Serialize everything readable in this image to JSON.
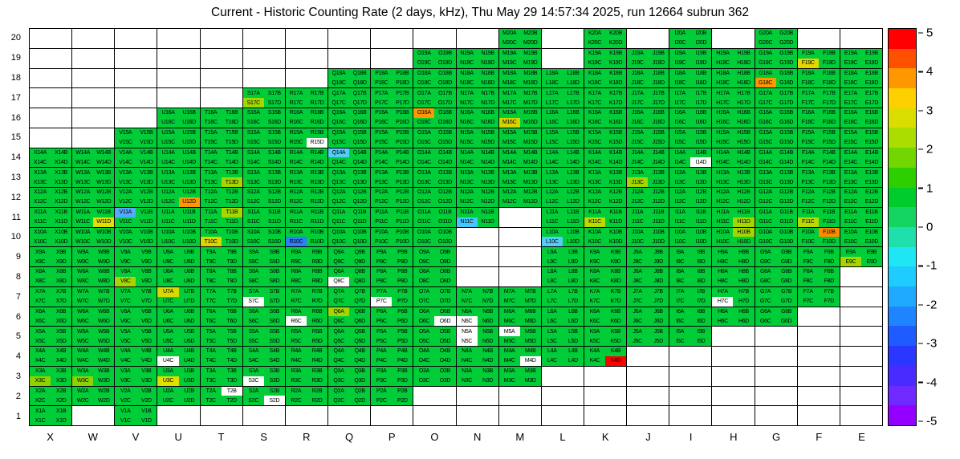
{
  "title": "Current - Historic Counting Rate (2 days, kHz), Thu May 29 14:57:34 2025, run 12664 subrun 362",
  "chart_data": {
    "type": "heatmap",
    "title": "Current - Historic Counting Rate (2 days, kHz), Thu May 29 14:57:34 2025, run 12664 subrun 362",
    "value_range": [
      -5,
      5
    ],
    "grid": true,
    "x_axis_labels": [
      "X",
      "W",
      "V",
      "U",
      "T",
      "S",
      "R",
      "Q",
      "P",
      "O",
      "N",
      "M",
      "L",
      "K",
      "J",
      "I",
      "H",
      "G",
      "F",
      "E"
    ],
    "y_axis_labels": [
      "20",
      "19",
      "18",
      "17",
      "16",
      "15",
      "14",
      "13",
      "12",
      "11",
      "10",
      "9",
      "8",
      "7",
      "6",
      "5",
      "4",
      "3",
      "2",
      "1"
    ],
    "quadrant_suffixes": [
      "A",
      "B",
      "C",
      "D"
    ],
    "default_color": "#00cd38",
    "empty_color": "#ffffff",
    "row_occupancy": {
      "20": [
        "M",
        "K",
        "I",
        "G"
      ],
      "19": [
        "O",
        "N",
        "M",
        "K",
        "J",
        "I",
        "H",
        "G",
        "F",
        "E"
      ],
      "18": [
        "Q",
        "P",
        "O",
        "N",
        "M",
        "L",
        "K",
        "J",
        "I",
        "H",
        "G",
        "F",
        "E"
      ],
      "17": [
        "S",
        "R",
        "Q",
        "P",
        "O",
        "N",
        "M",
        "L",
        "K",
        "J",
        "I",
        "H",
        "G",
        "F",
        "E"
      ],
      "16": [
        "U",
        "T",
        "S",
        "R",
        "Q",
        "P",
        "O",
        "N",
        "M",
        "L",
        "K",
        "J",
        "I",
        "H",
        "G",
        "F",
        "E"
      ],
      "15": [
        "V",
        "U",
        "T",
        "S",
        "R",
        "Q",
        "P",
        "O",
        "N",
        "M",
        "L",
        "K",
        "J",
        "I",
        "H",
        "G",
        "F",
        "E"
      ],
      "14": [
        "X",
        "W",
        "V",
        "U",
        "T",
        "S",
        "R",
        "Q",
        "P",
        "O",
        "N",
        "M",
        "L",
        "K",
        "J",
        "I",
        "H",
        "G",
        "F",
        "E"
      ],
      "13": [
        "X",
        "W",
        "V",
        "U",
        "T",
        "S",
        "R",
        "Q",
        "P",
        "O",
        "N",
        "M",
        "L",
        "K",
        "J",
        "I",
        "H",
        "G",
        "F",
        "E"
      ],
      "12": [
        "X",
        "W",
        "V",
        "U",
        "T",
        "S",
        "R",
        "Q",
        "P",
        "O",
        "N",
        "M",
        "L",
        "K",
        "J",
        "I",
        "H",
        "G",
        "F",
        "E"
      ],
      "11": [
        "X",
        "W",
        "V",
        "U",
        "T",
        "S",
        "R",
        "Q",
        "P",
        "O",
        "N",
        "L",
        "K",
        "J",
        "I",
        "H",
        "G",
        "F",
        "E"
      ],
      "10": [
        "X",
        "W",
        "V",
        "U",
        "T",
        "S",
        "R",
        "Q",
        "P",
        "O",
        "L",
        "K",
        "J",
        "I",
        "H",
        "G",
        "F",
        "E"
      ],
      "9": [
        "X",
        "W",
        "V",
        "U",
        "T",
        "S",
        "R",
        "Q",
        "P",
        "O",
        "L",
        "K",
        "J",
        "I",
        "H",
        "G",
        "F",
        "E"
      ],
      "8": [
        "X",
        "W",
        "V",
        "U",
        "T",
        "S",
        "R",
        "Q",
        "P",
        "O",
        "L",
        "K",
        "J",
        "I",
        "H",
        "G",
        "F"
      ],
      "7": [
        "X",
        "W",
        "V",
        "U",
        "T",
        "S",
        "R",
        "Q",
        "P",
        "O",
        "N",
        "M",
        "L",
        "K",
        "J",
        "I",
        "H",
        "G",
        "F"
      ],
      "6": [
        "X",
        "W",
        "V",
        "U",
        "T",
        "S",
        "R",
        "Q",
        "P",
        "O",
        "N",
        "M",
        "L",
        "K",
        "J",
        "I",
        "H",
        "G"
      ],
      "5": [
        "X",
        "W",
        "V",
        "U",
        "T",
        "S",
        "R",
        "Q",
        "P",
        "O",
        "N",
        "M",
        "L",
        "K",
        "J",
        "I"
      ],
      "4": [
        "X",
        "W",
        "V",
        "U",
        "T",
        "S",
        "R",
        "Q",
        "P",
        "O",
        "N",
        "M",
        "L",
        "K"
      ],
      "3": [
        "X",
        "W",
        "V",
        "U",
        "T",
        "S",
        "R",
        "Q",
        "P",
        "O",
        "N",
        "M"
      ],
      "2": [
        "X",
        "W",
        "V",
        "U",
        "T",
        "S",
        "R",
        "Q",
        "P"
      ],
      "1": [
        "X",
        "V"
      ]
    },
    "anomalies": [
      {
        "cell": "F19",
        "quad": "C",
        "color": "#e4d700"
      },
      {
        "cell": "G18",
        "quad": "C",
        "color": "#ff9800"
      },
      {
        "cell": "S17",
        "quad": "C",
        "color": "#a4d700"
      },
      {
        "cell": "O16",
        "quad": "A",
        "color": "#ff9800"
      },
      {
        "cell": "M16",
        "quad": "C",
        "color": "#d6d400"
      },
      {
        "cell": "R15",
        "quad": "D",
        "color": "#ffffff"
      },
      {
        "cell": "Q14",
        "quad": "A",
        "color": "#54ccf8"
      },
      {
        "cell": "I14",
        "quad": "D",
        "color": "#ffffff"
      },
      {
        "cell": "T13",
        "quad": "D",
        "color": "#a4d700"
      },
      {
        "cell": "J13",
        "quad": "C",
        "color": "#a4d700"
      },
      {
        "cell": "U12",
        "quad": "D",
        "color": "#ff9800"
      },
      {
        "cell": "W11",
        "quad": "D",
        "color": "#e0df00"
      },
      {
        "cell": "V11",
        "quad": "A",
        "color": "#55aaff"
      },
      {
        "cell": "T11",
        "quad": "B",
        "color": "#a4d700"
      },
      {
        "cell": "N11",
        "quad": "C",
        "color": "#44c8ff"
      },
      {
        "cell": "K11",
        "quad": "C",
        "color": "#bada00"
      },
      {
        "cell": "H11",
        "quad": "D",
        "color": "#a4d700"
      },
      {
        "cell": "F11",
        "quad": "C",
        "color": "#bada00"
      },
      {
        "cell": "T10",
        "quad": "C",
        "color": "#ddd500"
      },
      {
        "cell": "R10",
        "quad": "C",
        "color": "#2d7dff"
      },
      {
        "cell": "L10",
        "quad": "C",
        "color": "#54ccf8"
      },
      {
        "cell": "H10",
        "quad": "B",
        "color": "#a4d700"
      },
      {
        "cell": "F10",
        "quad": "B",
        "color": "#ff8c00"
      },
      {
        "cell": "E9",
        "quad": "C",
        "color": "#a4d700"
      },
      {
        "cell": "V8",
        "quad": "C",
        "color": "#a4d700"
      },
      {
        "cell": "Q8",
        "quad": "C",
        "color": "#ffffff"
      },
      {
        "cell": "U7",
        "quad": "A",
        "color": "#d6da00"
      },
      {
        "cell": "S7",
        "quad": "C",
        "color": "#ffffff"
      },
      {
        "cell": "P7",
        "quad": "C",
        "color": "#ffffff"
      },
      {
        "cell": "H7",
        "quad": "C",
        "color": "#ffffff"
      },
      {
        "cell": "Q6",
        "quad": "A",
        "color": "#a4d700"
      },
      {
        "cell": "R6",
        "quad": "C",
        "color": "#ffffff"
      },
      {
        "cell": "O6",
        "quad": "D",
        "color": "#ffffff"
      },
      {
        "cell": "N6",
        "quad": "C",
        "color": "#ffffff"
      },
      {
        "cell": "N5",
        "quad": "A",
        "color": "#ffffff"
      },
      {
        "cell": "N5",
        "quad": "C",
        "color": "#ffffff"
      },
      {
        "cell": "M5",
        "quad": "A",
        "color": "#ffffff"
      },
      {
        "cell": "U4",
        "quad": "C",
        "color": "#ffffff"
      },
      {
        "cell": "M4",
        "quad": "D",
        "color": "#ffffff"
      },
      {
        "cell": "K4",
        "quad": "D",
        "color": "#ff0000"
      },
      {
        "cell": "X3",
        "quad": "C",
        "color": "#8fd200"
      },
      {
        "cell": "W3",
        "quad": "C",
        "color": "#8fd200"
      },
      {
        "cell": "U3",
        "quad": "C",
        "color": "#e0df00"
      },
      {
        "cell": "S3",
        "quad": "C",
        "color": "#ffffff"
      },
      {
        "cell": "T2",
        "quad": "B",
        "color": "#ffffff"
      },
      {
        "cell": "S2",
        "quad": "D",
        "color": "#ffffff"
      }
    ],
    "colorbar": {
      "min": -5,
      "max": 5,
      "tick_labels": [
        "5",
        "4",
        "3",
        "2",
        "1",
        "0",
        "-1",
        "-2",
        "-3",
        "-4",
        "-5"
      ],
      "bands_bottom_to_top": [
        "#9400ff",
        "#6f2bff",
        "#4a2bff",
        "#2b36ff",
        "#1f5cff",
        "#1f84ff",
        "#1faaff",
        "#1fccff",
        "#1fe6f5",
        "#1fe0ad",
        "#14d562",
        "#00cc2e",
        "#2ecf00",
        "#72d600",
        "#aadd00",
        "#dade00",
        "#ffd000",
        "#ff9800",
        "#ff5000",
        "#ff0000"
      ]
    }
  }
}
